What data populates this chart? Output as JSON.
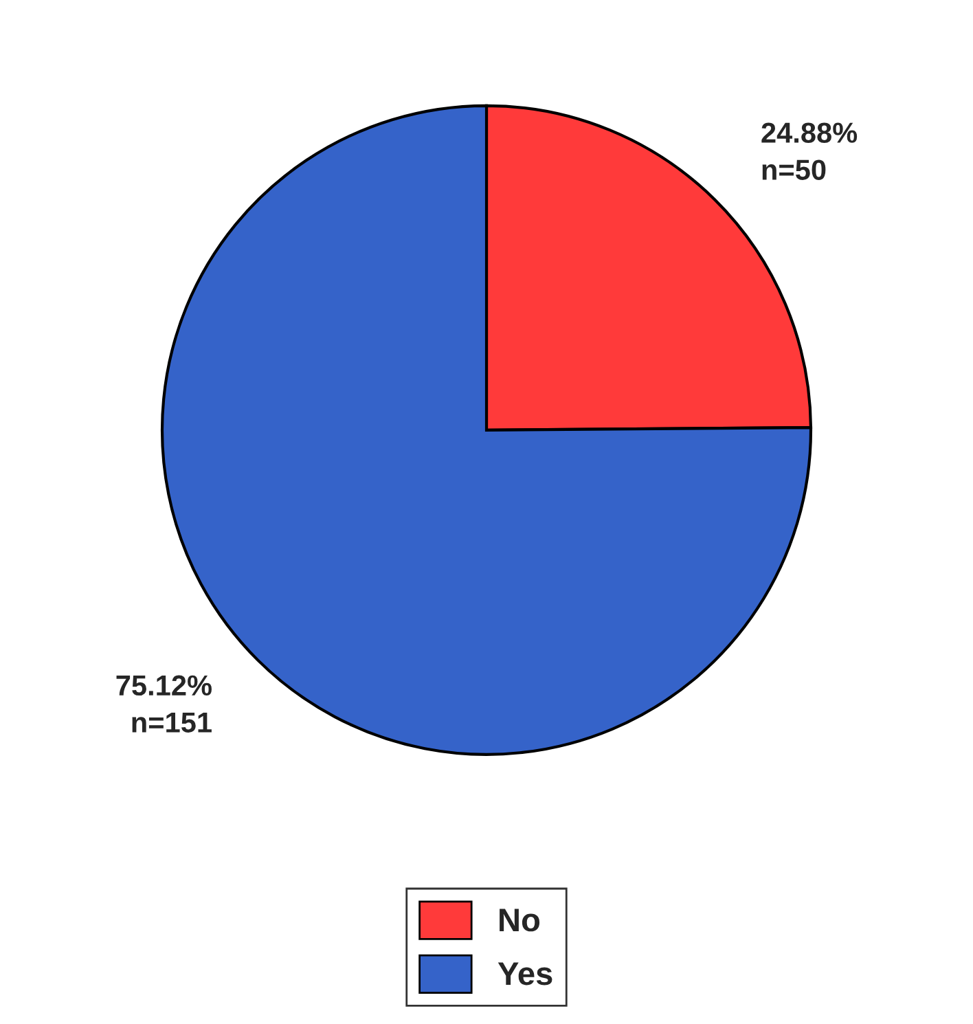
{
  "chart_data": {
    "type": "pie",
    "categories": [
      "No",
      "Yes"
    ],
    "values": [
      50,
      151
    ],
    "colors": [
      "#ff3a3a",
      "#3563c9"
    ],
    "value_labels": [
      "24.88%\nn=50",
      "75.12%\nn=151"
    ],
    "legend": "bottom"
  }
}
